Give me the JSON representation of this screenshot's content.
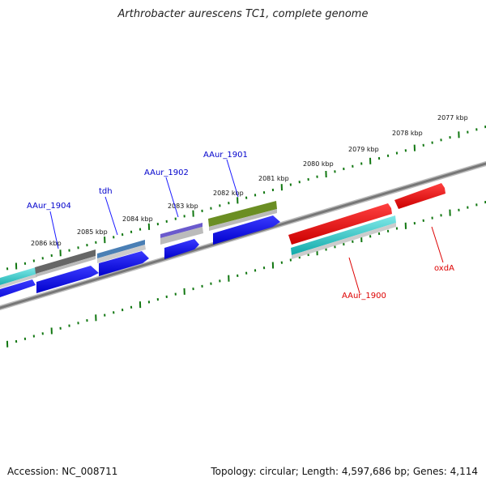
{
  "title": "Arthrobacter aurescens TC1, complete genome",
  "footer": {
    "accession": "Accession: NC_008711",
    "stats": "Topology: circular; Length: 4,597,686 bp; Genes: 4,114"
  },
  "ticks": [
    "2077 kbp",
    "2078 kbp",
    "2079 kbp",
    "2080 kbp",
    "2081 kbp",
    "2082 kbp",
    "2083 kbp",
    "2084 kbp",
    "2085 kbp",
    "2086 kbp"
  ],
  "genes": [
    {
      "label": "AAur_1904",
      "color": "#0000cc"
    },
    {
      "label": "tdh",
      "color": "#0000cc"
    },
    {
      "label": "AAur_1902",
      "color": "#0000cc"
    },
    {
      "label": "AAur_1901",
      "color": "#0000cc"
    },
    {
      "label": "AAur_1900",
      "color": "#dd0000"
    },
    {
      "label": "oxdA",
      "color": "#dd0000"
    }
  ],
  "colors": {
    "backbone": "#777777",
    "tick_marks": "#117711",
    "cds_forward": "#0000ee",
    "cds_reverse": "#ee0000",
    "ncrna": "#22cccc",
    "olive": "#6b8e23",
    "gray": "#666666",
    "steelblue": "#4a7fb5",
    "purple": "#6a5acd"
  }
}
